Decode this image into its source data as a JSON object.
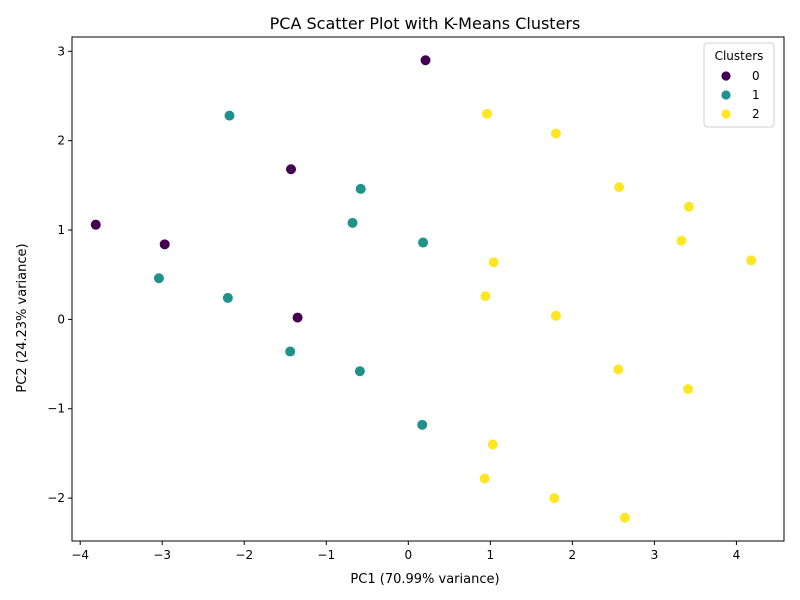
{
  "chart_data": {
    "type": "scatter",
    "title": "PCA Scatter Plot with K-Means Clusters",
    "xlabel": "PC1 (70.99% variance)",
    "ylabel": "PC2 (24.23% variance)",
    "xlim": [
      -4.1,
      4.58
    ],
    "ylim": [
      -2.48,
      3.16
    ],
    "xticks": [
      -4,
      -3,
      -2,
      -1,
      0,
      1,
      2,
      3,
      4
    ],
    "yticks": [
      -2,
      -1,
      0,
      1,
      2,
      3
    ],
    "grid": false,
    "legend": {
      "title": "Clusters",
      "placement": "top-right"
    },
    "series": [
      {
        "name": "0",
        "color": "#440154",
        "points": [
          [
            0.21,
            2.9
          ],
          [
            -1.43,
            1.68
          ],
          [
            -3.81,
            1.06
          ],
          [
            -2.97,
            0.84
          ],
          [
            -1.35,
            0.02
          ]
        ]
      },
      {
        "name": "1",
        "color": "#21918c",
        "points": [
          [
            -2.18,
            2.28
          ],
          [
            -0.58,
            1.46
          ],
          [
            -0.68,
            1.08
          ],
          [
            0.18,
            0.86
          ],
          [
            -3.04,
            0.46
          ],
          [
            -2.2,
            0.24
          ],
          [
            -1.44,
            -0.36
          ],
          [
            -0.59,
            -0.58
          ],
          [
            0.17,
            -1.18
          ]
        ]
      },
      {
        "name": "2",
        "color": "#fde725",
        "points": [
          [
            0.96,
            2.3
          ],
          [
            1.8,
            2.08
          ],
          [
            2.57,
            1.48
          ],
          [
            3.42,
            1.26
          ],
          [
            3.33,
            0.88
          ],
          [
            4.18,
            0.66
          ],
          [
            1.04,
            0.64
          ],
          [
            0.94,
            0.26
          ],
          [
            1.8,
            0.04
          ],
          [
            2.56,
            -0.56
          ],
          [
            3.41,
            -0.78
          ],
          [
            1.03,
            -1.4
          ],
          [
            0.93,
            -1.78
          ],
          [
            1.78,
            -2.0
          ],
          [
            2.64,
            -2.22
          ]
        ]
      }
    ]
  }
}
